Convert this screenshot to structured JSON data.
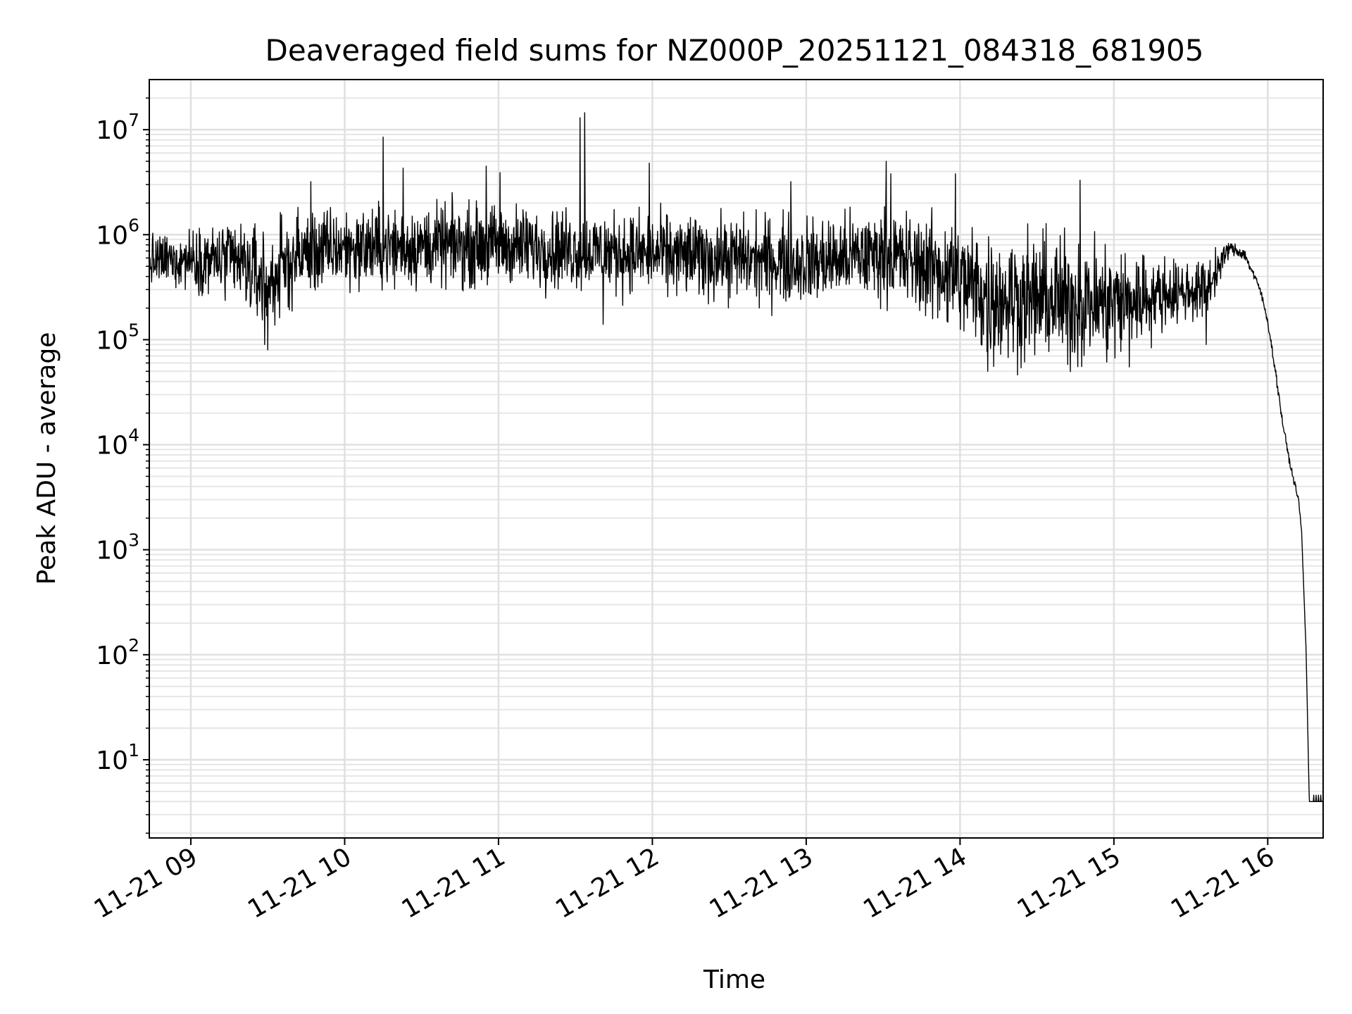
{
  "chart_data": {
    "type": "line",
    "title": "Deaveraged field sums for NZ000P_20251121_084318_681905",
    "xlabel": "Time",
    "ylabel": "Peak ADU - average",
    "yscale": "log",
    "ylim": [
      1.8,
      30000000
    ],
    "xlim_hours": [
      8.73,
      16.36
    ],
    "grid": true,
    "line_color": "#000000",
    "x_ticks": [
      {
        "label": "11-21 09",
        "hour": 9
      },
      {
        "label": "11-21 10",
        "hour": 10
      },
      {
        "label": "11-21 11",
        "hour": 11
      },
      {
        "label": "11-21 12",
        "hour": 12
      },
      {
        "label": "11-21 13",
        "hour": 13
      },
      {
        "label": "11-21 14",
        "hour": 14
      },
      {
        "label": "11-21 15",
        "hour": 15
      },
      {
        "label": "11-21 16",
        "hour": 16
      }
    ],
    "y_ticks": [
      {
        "base": "10",
        "exp": "1",
        "value": 10
      },
      {
        "base": "10",
        "exp": "2",
        "value": 100
      },
      {
        "base": "10",
        "exp": "3",
        "value": 1000
      },
      {
        "base": "10",
        "exp": "4",
        "value": 10000
      },
      {
        "base": "10",
        "exp": "5",
        "value": 100000
      },
      {
        "base": "10",
        "exp": "6",
        "value": 1000000
      },
      {
        "base": "10",
        "exp": "7",
        "value": 10000000
      }
    ],
    "series": [
      {
        "name": "Peak ADU - average",
        "baseline_segments": [
          {
            "hour": 8.73,
            "level": 550000,
            "spread": 0.35
          },
          {
            "hour": 9.0,
            "level": 600000,
            "spread": 0.4
          },
          {
            "hour": 9.3,
            "level": 550000,
            "spread": 0.6
          },
          {
            "hour": 9.5,
            "level": 350000,
            "spread": 0.7
          },
          {
            "hour": 9.7,
            "level": 650000,
            "spread": 0.6
          },
          {
            "hour": 10.0,
            "level": 750000,
            "spread": 0.55
          },
          {
            "hour": 11.0,
            "level": 800000,
            "spread": 0.55
          },
          {
            "hour": 12.0,
            "level": 650000,
            "spread": 0.55
          },
          {
            "hour": 13.0,
            "level": 550000,
            "spread": 0.6
          },
          {
            "hour": 13.5,
            "level": 650000,
            "spread": 0.6
          },
          {
            "hour": 13.9,
            "level": 450000,
            "spread": 0.75
          },
          {
            "hour": 14.2,
            "level": 260000,
            "spread": 0.9
          },
          {
            "hour": 15.0,
            "level": 220000,
            "spread": 0.85
          },
          {
            "hour": 15.35,
            "level": 280000,
            "spread": 0.45
          },
          {
            "hour": 15.6,
            "level": 300000,
            "spread": 0.4
          },
          {
            "hour": 15.75,
            "level": 750000,
            "spread": 0.1
          },
          {
            "hour": 15.85,
            "level": 650000,
            "spread": 0.08
          },
          {
            "hour": 15.95,
            "level": 300000,
            "spread": 0.06
          },
          {
            "hour": 16.0,
            "level": 150000,
            "spread": 0.06
          },
          {
            "hour": 16.05,
            "level": 50000,
            "spread": 0.06
          },
          {
            "hour": 16.1,
            "level": 15000,
            "spread": 0.06
          },
          {
            "hour": 16.15,
            "level": 6000,
            "spread": 0.05
          },
          {
            "hour": 16.2,
            "level": 3000,
            "spread": 0.04
          },
          {
            "hour": 16.22,
            "level": 1500,
            "spread": 0.03
          },
          {
            "hour": 16.25,
            "level": 100,
            "spread": 0.03
          },
          {
            "hour": 16.27,
            "level": 4,
            "spread": 0.0
          },
          {
            "hour": 16.36,
            "level": 4,
            "spread": 0.0
          }
        ],
        "spikes": [
          {
            "hour": 9.78,
            "value": 3200000
          },
          {
            "hour": 10.25,
            "value": 8500000
          },
          {
            "hour": 10.38,
            "value": 4300000
          },
          {
            "hour": 10.92,
            "value": 4500000
          },
          {
            "hour": 11.01,
            "value": 3900000
          },
          {
            "hour": 11.53,
            "value": 13000000
          },
          {
            "hour": 11.56,
            "value": 14500000
          },
          {
            "hour": 11.98,
            "value": 4800000
          },
          {
            "hour": 12.9,
            "value": 3200000
          },
          {
            "hour": 13.52,
            "value": 5000000
          },
          {
            "hour": 13.55,
            "value": 3800000
          },
          {
            "hour": 13.97,
            "value": 3800000
          },
          {
            "hour": 14.78,
            "value": 3300000
          }
        ],
        "dips": [
          {
            "hour": 9.48,
            "value": 90000
          },
          {
            "hour": 9.5,
            "value": 80000
          },
          {
            "hour": 11.68,
            "value": 140000
          },
          {
            "hour": 14.18,
            "value": 50000
          },
          {
            "hour": 14.7,
            "value": 58000
          },
          {
            "hour": 15.1,
            "value": 55000
          },
          {
            "hour": 15.6,
            "value": 90000
          }
        ]
      }
    ]
  }
}
